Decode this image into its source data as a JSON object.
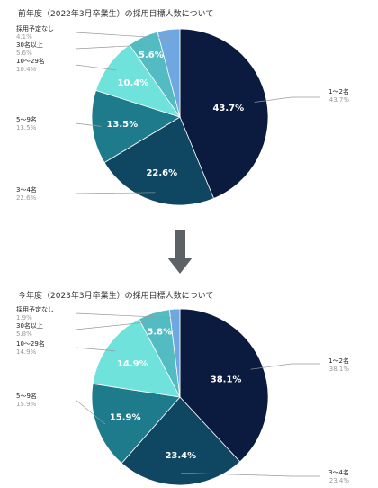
{
  "chart_data": [
    {
      "type": "pie",
      "title": "前年度（2022年3月卒業生）の採用目標人数について",
      "categories": [
        "1〜2名",
        "3〜4名",
        "5〜9名",
        "10〜29名",
        "30名以上",
        "採用予定なし"
      ],
      "values": [
        43.7,
        22.6,
        13.5,
        10.4,
        5.6,
        4.1
      ],
      "value_labels": [
        "43.7%",
        "22.6%",
        "13.5%",
        "10.4%",
        "5.6%",
        ""
      ],
      "legend_values": [
        "43.7%",
        "22.6%",
        "13.5%",
        "10.4%",
        "5.6%",
        "4.1%"
      ],
      "colors": [
        "#0b1b3f",
        "#0f4763",
        "#1e7b8c",
        "#6fe3db",
        "#52bcc2",
        "#6fa8e0"
      ]
    },
    {
      "type": "pie",
      "title": "今年度（2023年3月卒業生）の採用目標人数について",
      "categories": [
        "1〜2名",
        "3〜4名",
        "5〜9名",
        "10〜29名",
        "30名以上",
        "採用予定なし"
      ],
      "values": [
        38.1,
        23.4,
        15.9,
        14.9,
        5.8,
        1.9
      ],
      "value_labels": [
        "38.1%",
        "23.4%",
        "15.9%",
        "14.9%",
        "5.8%",
        ""
      ],
      "legend_values": [
        "38.1%",
        "23.4%",
        "15.9%",
        "14.9%",
        "5.8%",
        "1.9%"
      ],
      "colors": [
        "#0b1b3f",
        "#0f4763",
        "#1e7b8c",
        "#6fe3db",
        "#52bcc2",
        "#6fa8e0"
      ]
    }
  ],
  "arrow": {
    "icon": "down-arrow-icon",
    "color": "#5d6266"
  }
}
